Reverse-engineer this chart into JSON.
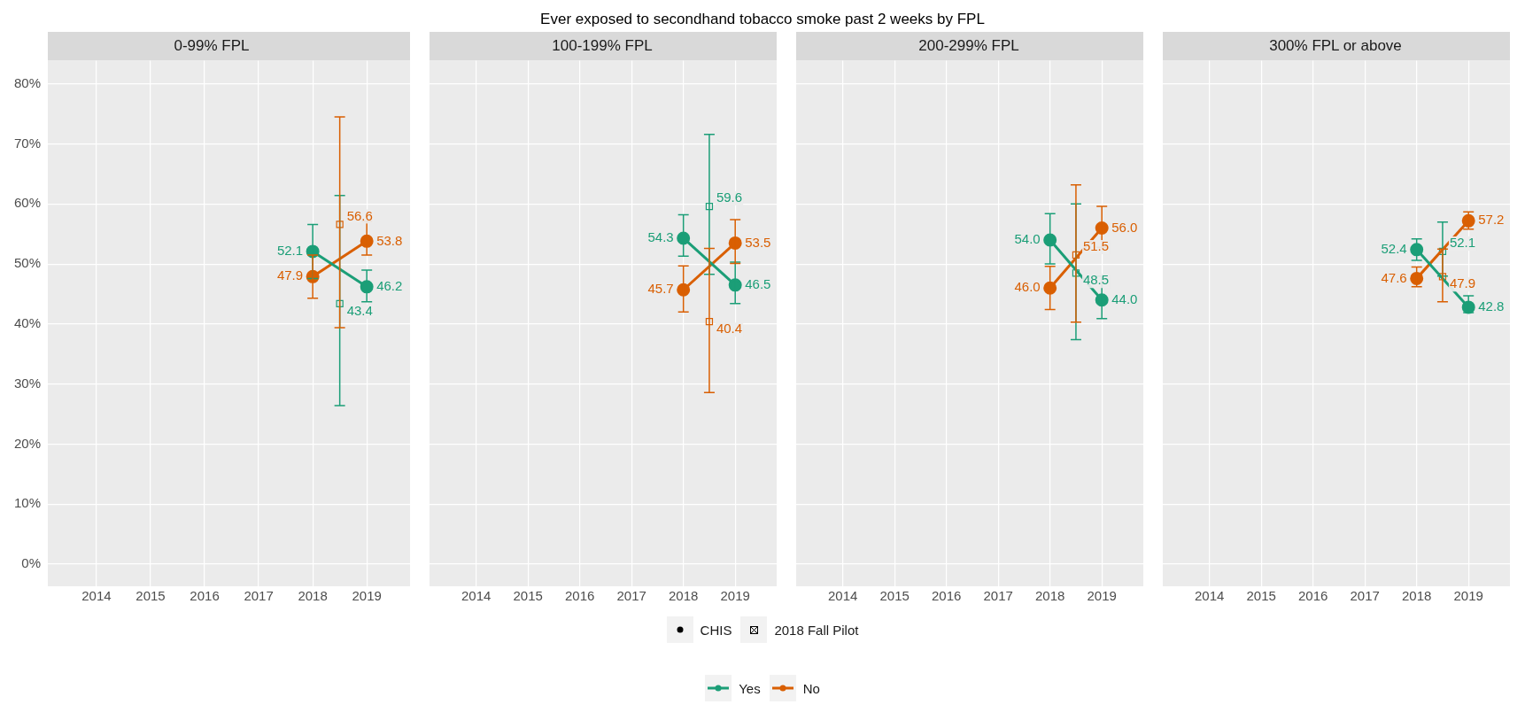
{
  "chart_data": [
    {
      "type": "line",
      "title": "0-99% FPL",
      "annotations": [
        "Ever exposed to secondhand tobacco smoke past 2 weeks by FPL",
        "CHIS",
        "2018 Fall Pilot"
      ],
      "xlim": [
        2013.1,
        2019.8
      ],
      "xticks": [
        2014,
        2015,
        2016,
        2017,
        2018,
        2019
      ],
      "ylim": [
        -3.7,
        83.9
      ],
      "yticks": [
        {
          "value": 0,
          "label": "0%"
        },
        {
          "value": 10,
          "label": "10%"
        },
        {
          "value": 20,
          "label": "20%"
        },
        {
          "value": 30,
          "label": "30%"
        },
        {
          "value": 40,
          "label": "40%"
        },
        {
          "value": 50,
          "label": "50%"
        },
        {
          "value": 60,
          "label": "60%"
        },
        {
          "value": 70,
          "label": "70%"
        },
        {
          "value": 80,
          "label": "80%"
        }
      ],
      "grid": true,
      "legend": "bottom",
      "line_style": "solid",
      "series": [
        {
          "name": "Yes",
          "type": "line",
          "marker": "circle",
          "color": "#1b9e77",
          "x": [
            2018,
            2019
          ],
          "values": [
            52.1,
            46.2
          ],
          "value_labels": [
            "52.1",
            "46.2"
          ],
          "errors": [
            [
              47.6,
              56.6
            ],
            [
              43.7,
              49.0
            ]
          ]
        },
        {
          "name": "No",
          "type": "line",
          "marker": "circle",
          "color": "#d95f02",
          "x": [
            2018,
            2019
          ],
          "values": [
            47.9,
            53.8
          ],
          "value_labels": [
            "47.9",
            "53.8"
          ],
          "errors": [
            [
              44.3,
              51.5
            ],
            [
              51.5,
              57.1
            ]
          ]
        },
        {
          "type": "scatter",
          "marker": "square",
          "color": "#1b9e77",
          "x": [
            2018.5
          ],
          "values": [
            43.4
          ],
          "value_labels": [
            "43.4"
          ],
          "errors": [
            [
              26.4,
              61.4
            ]
          ]
        },
        {
          "type": "scatter",
          "marker": "square",
          "color": "#d95f02",
          "x": [
            2018.5
          ],
          "values": [
            56.6
          ],
          "value_labels": [
            "56.6"
          ],
          "errors": [
            [
              39.4,
              74.5
            ]
          ]
        }
      ]
    },
    {
      "type": "line",
      "title": "100-199% FPL",
      "xlim": [
        2013.1,
        2019.8
      ],
      "xticks": [
        2014,
        2015,
        2016,
        2017,
        2018,
        2019
      ],
      "ylim": [
        -3.7,
        83.9
      ],
      "yticks": [
        {
          "value": 0,
          "label": null
        },
        {
          "value": 10,
          "label": null
        },
        {
          "value": 20,
          "label": null
        },
        {
          "value": 30,
          "label": null
        },
        {
          "value": 40,
          "label": null
        },
        {
          "value": 50,
          "label": null
        },
        {
          "value": 60,
          "label": null
        },
        {
          "value": 70,
          "label": null
        },
        {
          "value": 80,
          "label": null
        }
      ],
      "grid": true,
      "tick_labels": "x",
      "line_style": "solid",
      "series": [
        {
          "type": "line",
          "marker": "circle",
          "color": "#1b9e77",
          "x": [
            2018,
            2019
          ],
          "values": [
            54.3,
            46.5
          ],
          "value_labels": [
            "54.3",
            "46.5"
          ],
          "errors": [
            [
              51.3,
              58.2
            ],
            [
              43.4,
              50.3
            ]
          ]
        },
        {
          "type": "line",
          "marker": "circle",
          "color": "#d95f02",
          "x": [
            2018,
            2019
          ],
          "values": [
            45.7,
            53.5
          ],
          "value_labels": [
            "45.7",
            "53.5"
          ],
          "errors": [
            [
              42.0,
              49.7
            ],
            [
              50.1,
              57.4
            ]
          ]
        },
        {
          "type": "scatter",
          "marker": "square",
          "color": "#1b9e77",
          "x": [
            2018.5
          ],
          "values": [
            59.6
          ],
          "value_labels": [
            "59.6"
          ],
          "errors": [
            [
              48.3,
              71.6
            ]
          ]
        },
        {
          "type": "scatter",
          "marker": "square",
          "color": "#d95f02",
          "x": [
            2018.5
          ],
          "values": [
            40.4
          ],
          "value_labels": [
            "40.4"
          ],
          "errors": [
            [
              28.6,
              52.6
            ]
          ]
        }
      ]
    },
    {
      "type": "line",
      "title": "200-299% FPL",
      "xlim": [
        2013.1,
        2019.8
      ],
      "xticks": [
        2014,
        2015,
        2016,
        2017,
        2018,
        2019
      ],
      "ylim": [
        -3.7,
        83.9
      ],
      "yticks": [
        {
          "value": 0,
          "label": null
        },
        {
          "value": 10,
          "label": null
        },
        {
          "value": 20,
          "label": null
        },
        {
          "value": 30,
          "label": null
        },
        {
          "value": 40,
          "label": null
        },
        {
          "value": 50,
          "label": null
        },
        {
          "value": 60,
          "label": null
        },
        {
          "value": 70,
          "label": null
        },
        {
          "value": 80,
          "label": null
        }
      ],
      "grid": true,
      "tick_labels": "x",
      "line_style": "solid",
      "series": [
        {
          "type": "line",
          "marker": "circle",
          "color": "#1b9e77",
          "x": [
            2018,
            2019
          ],
          "values": [
            54.0,
            44.0
          ],
          "value_labels": [
            "54.0",
            "44.0"
          ],
          "errors": [
            [
              50.0,
              58.4
            ],
            [
              40.9,
              48.0
            ]
          ]
        },
        {
          "type": "line",
          "marker": "circle",
          "color": "#d95f02",
          "x": [
            2018,
            2019
          ],
          "values": [
            46.0,
            56.0
          ],
          "value_labels": [
            "46.0",
            "56.0"
          ],
          "errors": [
            [
              42.4,
              49.6
            ],
            [
              52.8,
              59.6
            ]
          ]
        },
        {
          "type": "scatter",
          "marker": "square",
          "color": "#1b9e77",
          "x": [
            2018.5
          ],
          "values": [
            48.5
          ],
          "value_labels": [
            "48.5"
          ],
          "errors": [
            [
              37.4,
              60.0
            ]
          ]
        },
        {
          "type": "scatter",
          "marker": "square",
          "color": "#d95f02",
          "x": [
            2018.5
          ],
          "values": [
            51.5
          ],
          "value_labels": [
            "51.5"
          ],
          "errors": [
            [
              40.3,
              63.2
            ]
          ]
        }
      ]
    },
    {
      "type": "line",
      "title": "300% FPL or above",
      "xlim": [
        2013.1,
        2019.8
      ],
      "xticks": [
        2014,
        2015,
        2016,
        2017,
        2018,
        2019
      ],
      "ylim": [
        -3.7,
        83.9
      ],
      "yticks": [
        {
          "value": 0,
          "label": null
        },
        {
          "value": 10,
          "label": null
        },
        {
          "value": 20,
          "label": null
        },
        {
          "value": 30,
          "label": null
        },
        {
          "value": 40,
          "label": null
        },
        {
          "value": 50,
          "label": null
        },
        {
          "value": 60,
          "label": null
        },
        {
          "value": 70,
          "label": null
        },
        {
          "value": 80,
          "label": null
        }
      ],
      "grid": true,
      "tick_labels": "x",
      "line_style": "solid",
      "series": [
        {
          "type": "line",
          "marker": "circle",
          "color": "#1b9e77",
          "x": [
            2018,
            2019
          ],
          "values": [
            52.4,
            42.8
          ],
          "value_labels": [
            "52.4",
            "42.8"
          ],
          "errors": [
            [
              50.6,
              54.2
            ],
            [
              41.9,
              44.7
            ]
          ]
        },
        {
          "type": "line",
          "marker": "circle",
          "color": "#d95f02",
          "x": [
            2018,
            2019
          ],
          "values": [
            47.6,
            57.2
          ],
          "value_labels": [
            "47.6",
            "57.2"
          ],
          "errors": [
            [
              46.2,
              49.5
            ],
            [
              55.8,
              58.7
            ]
          ]
        },
        {
          "type": "scatter",
          "marker": "square",
          "color": "#1b9e77",
          "x": [
            2018.5
          ],
          "values": [
            52.1
          ],
          "value_labels": [
            "52.1"
          ],
          "errors": [
            [
              48.0,
              57.0
            ]
          ]
        },
        {
          "type": "scatter",
          "marker": "square",
          "color": "#d95f02",
          "x": [
            2018.5
          ],
          "values": [
            47.9
          ],
          "value_labels": [
            "47.9"
          ],
          "errors": [
            [
              43.7,
              52.5
            ]
          ]
        }
      ]
    }
  ]
}
